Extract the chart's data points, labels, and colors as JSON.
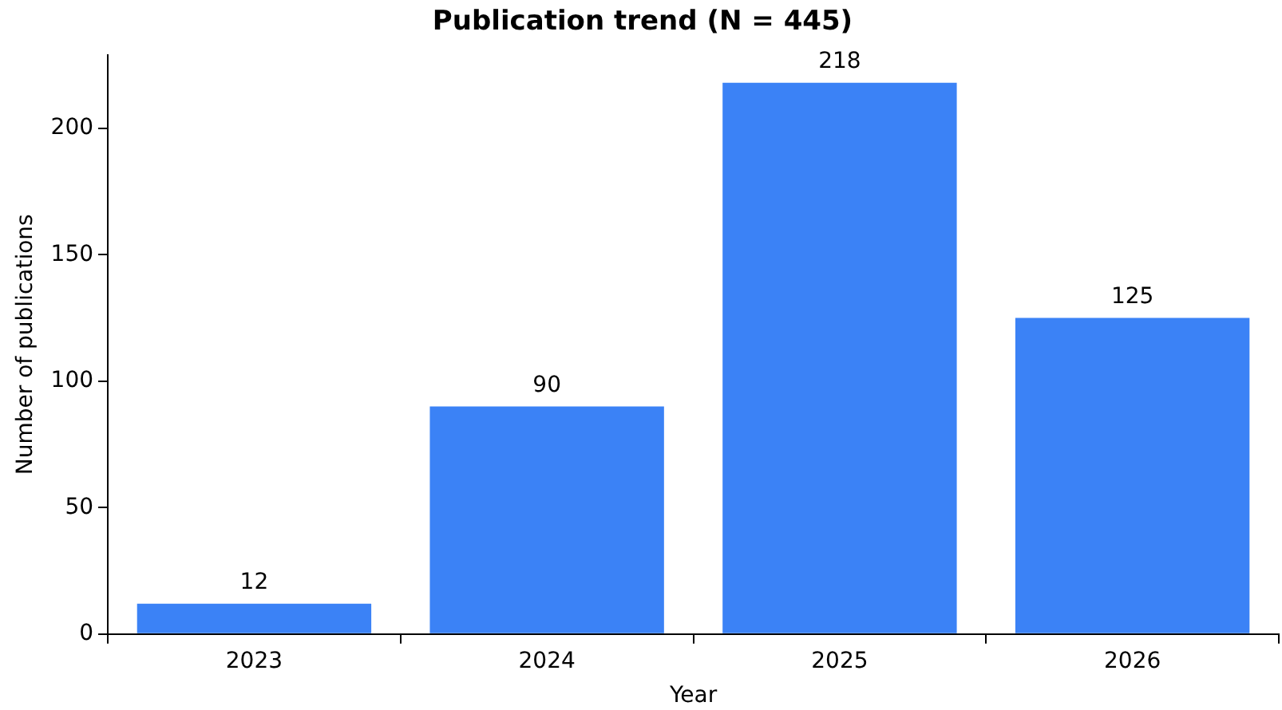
{
  "chart_data": {
    "type": "bar",
    "title": "Publication trend (N = 445)",
    "xlabel": "Year",
    "ylabel": "Number of publications",
    "categories": [
      "2023",
      "2024",
      "2025",
      "2026"
    ],
    "values": [
      12,
      90,
      218,
      125
    ],
    "color": "#3b82f6",
    "ylim": [
      0,
      229
    ],
    "yticks": [
      0,
      50,
      100,
      150,
      200
    ],
    "grid": false,
    "legend": false,
    "data_labels": true
  }
}
